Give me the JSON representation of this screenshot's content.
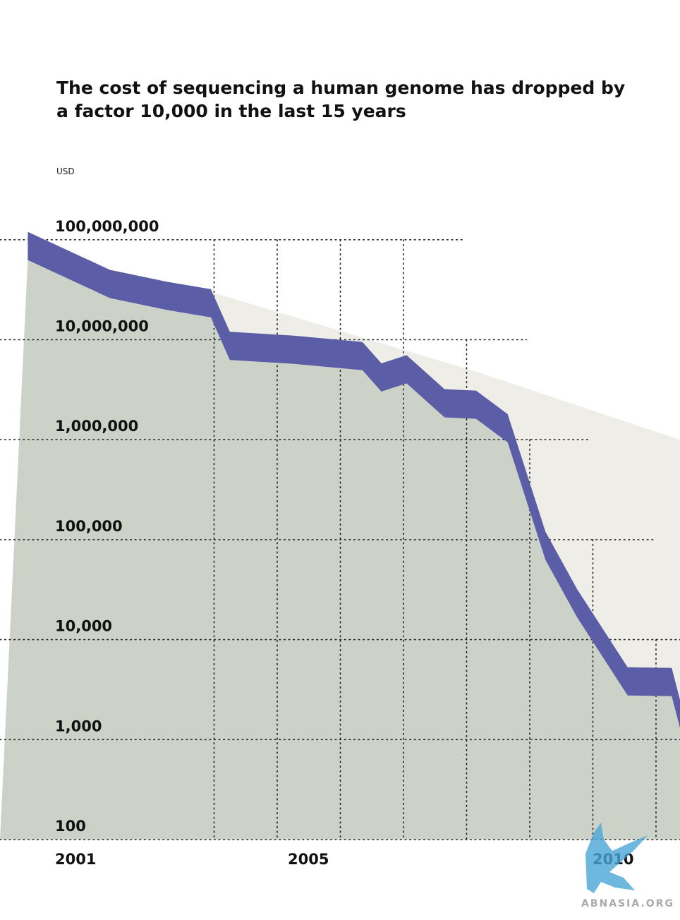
{
  "chart_data": {
    "type": "area",
    "title": "The cost of sequencing a human genome has dropped by a factor 10,000 in the last 15 years",
    "ylabel": "USD",
    "yscale": "log",
    "ylim": [
      100,
      300000000
    ],
    "xlim": [
      2001,
      2011.4
    ],
    "y_ticks": [
      {
        "value": 100000000,
        "label": "100,000,000"
      },
      {
        "value": 10000000,
        "label": "10,000,000"
      },
      {
        "value": 1000000,
        "label": "1,000,000"
      },
      {
        "value": 100000,
        "label": "100,000"
      },
      {
        "value": 10000,
        "label": "10,000"
      },
      {
        "value": 1000,
        "label": "1,000"
      },
      {
        "value": 100,
        "label": "100"
      }
    ],
    "x_ticks": [
      {
        "value": 2001,
        "label": "2001"
      },
      {
        "value": 2005,
        "label": "2005"
      },
      {
        "value": 2010,
        "label": "2010"
      }
    ],
    "series": [
      {
        "role": "cost",
        "color": "#5b5ea6",
        "x": [
          2000.1,
          2001.4,
          2002.3,
          2003.0,
          2003.3,
          2004.3,
          2005.4,
          2005.7,
          2006.1,
          2006.7,
          2007.2,
          2007.7,
          2008.3,
          2008.8,
          2009.6,
          2010.3,
          2010.8,
          2011.4
        ],
        "y": [
          120000000,
          50000000,
          38000000,
          32000000,
          12000000,
          11000000,
          9500000,
          5800000,
          7000000,
          3200000,
          3100000,
          1800000,
          120000,
          32000,
          5300,
          5200,
          2500,
          800
        ]
      },
      {
        "role": "trend",
        "color": "#efede7",
        "x": [
          2003.0,
          2007.2,
          2011.4
        ],
        "y": [
          30000000,
          4800000,
          1000000
        ]
      }
    ],
    "colors": {
      "area": "#cdd2c8",
      "band": "#5b5ea6",
      "trend": "#efede7",
      "grid": "#222222"
    }
  },
  "watermark": "ABNASIA.ORG"
}
